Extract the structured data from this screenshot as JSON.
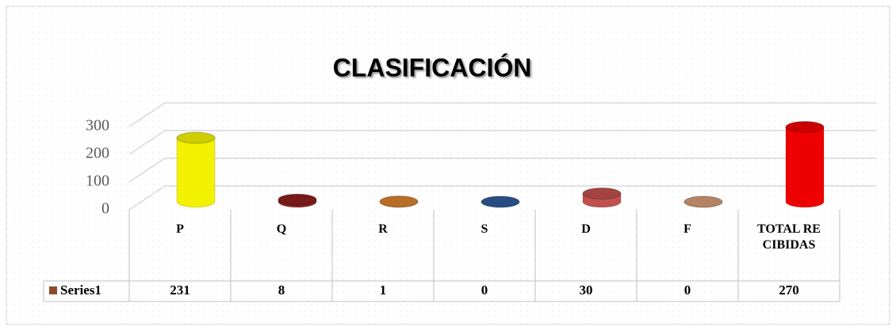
{
  "chart_data": {
    "type": "bar",
    "title": "CLASIFICACIÓN",
    "categories": [
      "P",
      "Q",
      "R",
      "S",
      "D",
      "F",
      "TOTAL RECIBIDAS"
    ],
    "series": [
      {
        "name": "Series1",
        "color": "#8b4a2b",
        "colors": [
          "#f2f200",
          "#8c1f1f",
          "#d9822b",
          "#2e5b9a",
          "#c0504d",
          "#d49a74",
          "#ee0000"
        ],
        "values": [
          231,
          8,
          1,
          0,
          30,
          0,
          270
        ]
      }
    ],
    "ylim": [
      0,
      300
    ],
    "yticks": [
      0,
      100,
      200,
      300
    ],
    "grid": true
  }
}
